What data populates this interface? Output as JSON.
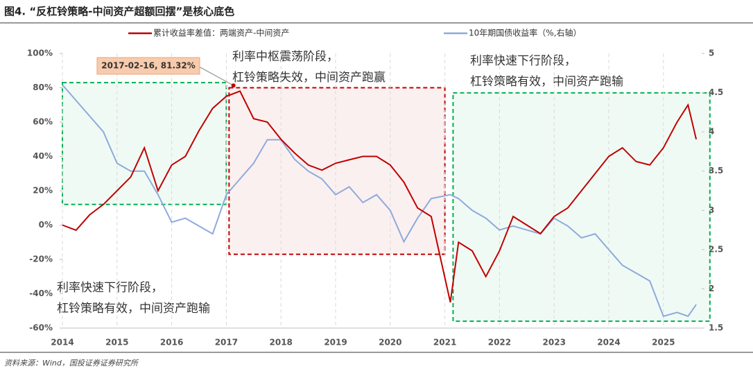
{
  "chart_data": {
    "type": "line",
    "title": "图4. “反杠铃策略-中间资产超额回摆”是核心底色",
    "source": "资料来源：Wind，国投证券证券研究所",
    "x": [
      2014,
      2014.25,
      2014.5,
      2014.75,
      2015,
      2015.25,
      2015.5,
      2015.75,
      2016,
      2016.25,
      2016.5,
      2016.75,
      2017,
      2017.25,
      2017.5,
      2017.75,
      2018,
      2018.25,
      2018.5,
      2018.75,
      2019,
      2019.25,
      2019.5,
      2019.75,
      2020,
      2020.25,
      2020.5,
      2020.75,
      2021.1,
      2021.25,
      2021.5,
      2021.75,
      2022,
      2022.25,
      2022.5,
      2022.75,
      2023,
      2023.25,
      2023.5,
      2023.75,
      2024,
      2024.25,
      2024.5,
      2024.75,
      2025,
      2025.25,
      2025.45,
      2025.6
    ],
    "series": [
      {
        "name": "累计收益率差值：两端资产-中间资产",
        "color": "#c00000",
        "axis": "y",
        "values": [
          0,
          -3,
          6,
          12,
          20,
          28,
          45,
          20,
          35,
          40,
          55,
          68,
          75,
          78,
          62,
          60,
          50,
          42,
          35,
          32,
          36,
          38,
          40,
          40,
          35,
          25,
          10,
          5,
          -45,
          -10,
          -15,
          -30,
          -15,
          5,
          0,
          -5,
          5,
          10,
          20,
          30,
          40,
          45,
          37,
          35,
          45,
          60,
          70,
          50
        ]
      },
      {
        "name": "10年期国债收益率（%,右轴）",
        "color": "#8eaadb",
        "axis": "y2",
        "values": [
          4.6,
          4.4,
          4.2,
          4.0,
          3.6,
          3.5,
          3.5,
          3.2,
          2.85,
          2.9,
          2.8,
          2.7,
          3.2,
          3.4,
          3.6,
          3.9,
          3.9,
          3.65,
          3.5,
          3.4,
          3.2,
          3.3,
          3.1,
          3.2,
          3.0,
          2.6,
          2.9,
          3.15,
          3.2,
          3.15,
          3.0,
          2.9,
          2.75,
          2.8,
          2.75,
          2.7,
          2.9,
          2.8,
          2.65,
          2.7,
          2.5,
          2.3,
          2.2,
          2.1,
          1.65,
          1.7,
          1.65,
          1.8
        ]
      }
    ],
    "xlim": [
      2014,
      2025.7
    ],
    "xticks": [
      2014,
      2015,
      2016,
      2017,
      2018,
      2019,
      2020,
      2021,
      2022,
      2023,
      2024,
      2025
    ],
    "ylim": [
      -60,
      100
    ],
    "yticks": [
      {
        "value": -60,
        "label": "-60%"
      },
      {
        "value": -40,
        "label": "-40%"
      },
      {
        "value": -20,
        "label": "-20%"
      },
      {
        "value": 0,
        "label": "0%"
      },
      {
        "value": 20,
        "label": "20%"
      },
      {
        "value": 40,
        "label": "40%"
      },
      {
        "value": 60,
        "label": "60%"
      },
      {
        "value": 80,
        "label": "80%"
      },
      {
        "value": 100,
        "label": "100%"
      }
    ],
    "y2lim": [
      1.5,
      5
    ],
    "y2ticks": [
      1.5,
      2,
      2.5,
      3,
      3.5,
      4,
      4.5,
      5
    ],
    "grid": "x",
    "annotation": {
      "label": "2017-02-16, 81.32%",
      "x": 2017.13,
      "y": 81.32
    },
    "regions": [
      {
        "x": [
          2014,
          2017
        ],
        "y": [
          12,
          83
        ],
        "color": "#00b050",
        "lines": [
          "利率快速下行阶段，",
          "杠铃策略有效，中间资产跑输"
        ]
      },
      {
        "x": [
          2017.05,
          2021
        ],
        "y": [
          -17,
          80
        ],
        "color": "#c00000",
        "lines": [
          "利率中枢震荡阶段，",
          "杠铃策略失效，中间资产跑赢"
        ]
      },
      {
        "x": [
          2021.15,
          2025.85
        ],
        "y": [
          -56,
          77
        ],
        "color": "#00b050",
        "lines": [
          "利率快速下行阶段，",
          "杠铃策略有效，中间资产跑输"
        ]
      }
    ]
  }
}
